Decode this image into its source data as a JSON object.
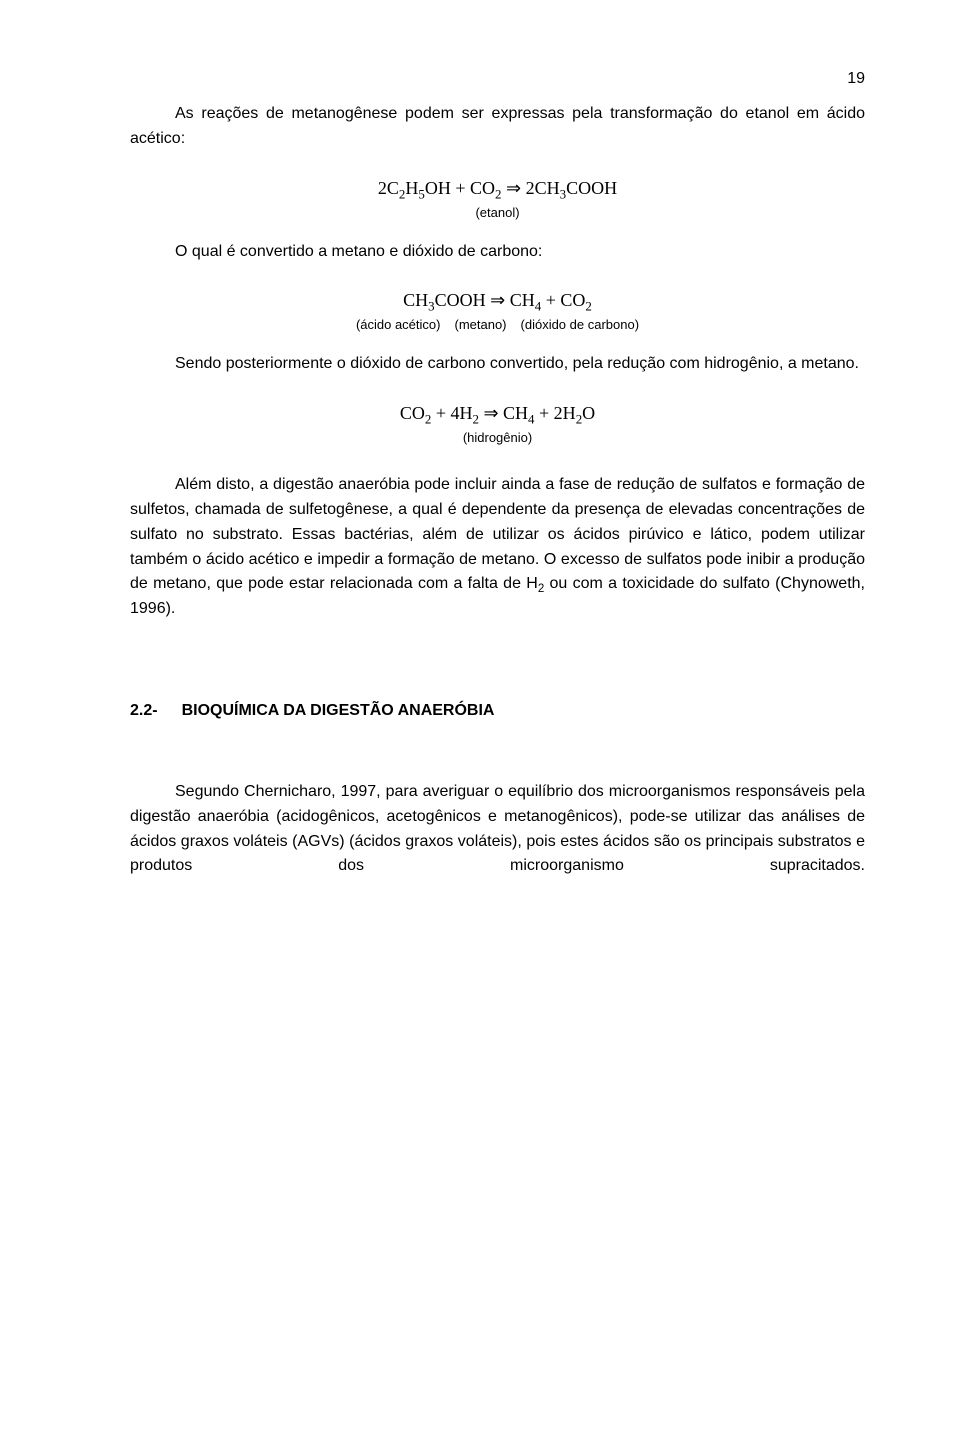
{
  "page_number": "19",
  "para1": "As reações de metanogênese podem ser expressas pela transformação do etanol em ácido acético:",
  "eq1": "2C₂H₅OH + CO₂ ⇒ 2CH₃COOH",
  "eq1_label": "(etanol)",
  "para2": "O qual é convertido a metano e dióxido de carbono:",
  "eq2": "CH₃COOH ⇒ CH₄ + CO₂",
  "eq2_label_a": "(ácido acético)",
  "eq2_label_b": "(metano)",
  "eq2_label_c": "(dióxido de carbono)",
  "para3": "Sendo posteriormente o dióxido de carbono convertido, pela redução com hidrogênio, a metano.",
  "eq3": "CO₂ + 4H₂ ⇒ CH₄ + 2H₂O",
  "eq3_label": "(hidrogênio)",
  "para4": "Além disto, a digestão anaeróbia pode incluir ainda a fase de redução de sulfatos e formação de sulfetos, chamada de sulfetogênese, a qual é dependente da presença de elevadas concentrações de sulfato no substrato. Essas bactérias, além de utilizar os ácidos pirúvico e lático, podem utilizar também o ácido acético e impedir a formação de metano. O excesso de sulfatos pode inibir a produção de metano, que pode estar relacionada com a falta de H₂ ou com a toxicidade do sulfato (Chynoweth, 1996).",
  "section_number": "2.2-",
  "section_title": "BIOQUÍMICA DA DIGESTÃO ANAERÓBIA",
  "para5": "Segundo Chernicharo, 1997, para averiguar o equilíbrio dos microorganismos responsáveis pela digestão anaeróbia (acidogênicos, acetogênicos e metanogênicos), pode-se utilizar das análises de ácidos graxos voláteis (AGVs) (ácidos graxos voláteis), pois estes ácidos são os principais substratos e produtos dos microorganismo supracitados."
}
